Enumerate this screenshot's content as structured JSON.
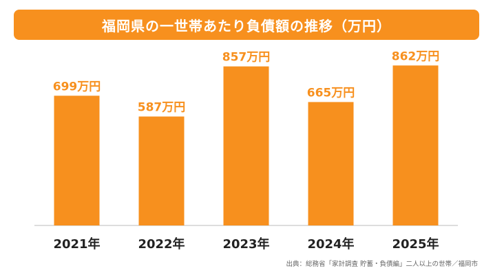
{
  "colors": {
    "accent": "#f7901e",
    "bar": "#f7901e",
    "value_label": "#f7901e",
    "axis_label": "#222222",
    "baseline": "#bbbbbb"
  },
  "chart_data": {
    "type": "bar",
    "title": "福岡県の一世帯あたり負債額の推移（万円）",
    "categories": [
      "2021年",
      "2022年",
      "2023年",
      "2024年",
      "2025年"
    ],
    "values": [
      699,
      587,
      857,
      665,
      862
    ],
    "value_labels": [
      "699万円",
      "587万円",
      "857万円",
      "665万円",
      "862万円"
    ],
    "ylim": [
      0,
      1000
    ],
    "grid": false,
    "legend": "none",
    "source": "出典：総務省「家計調査 貯蓄・負債編」二人以上の世帯／福岡市"
  }
}
